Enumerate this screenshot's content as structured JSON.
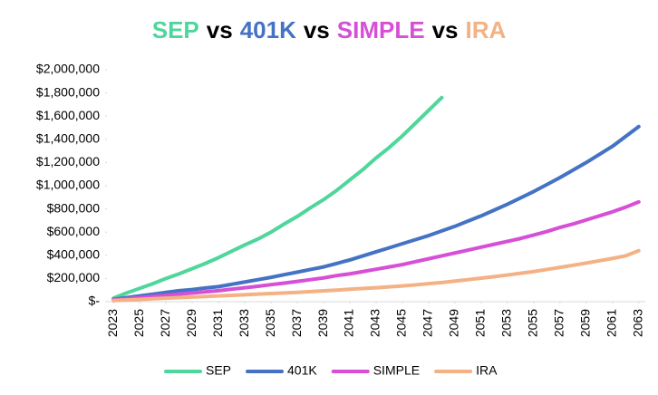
{
  "chart_data": {
    "type": "line",
    "title": [
      "SEP",
      "vs",
      "401K",
      "vs",
      "SIMPLE",
      "vs",
      "IRA"
    ],
    "x": [
      2023,
      2024,
      2025,
      2026,
      2027,
      2028,
      2029,
      2030,
      2031,
      2032,
      2033,
      2034,
      2035,
      2036,
      2037,
      2038,
      2039,
      2040,
      2041,
      2042,
      2043,
      2044,
      2045,
      2046,
      2047,
      2048,
      2049,
      2050,
      2051,
      2052,
      2053,
      2054,
      2055,
      2056,
      2057,
      2058,
      2059,
      2060,
      2061,
      2062,
      2063
    ],
    "xlim": [
      2022.5,
      2063.5
    ],
    "xticks": [
      2023,
      2025,
      2027,
      2029,
      2031,
      2033,
      2035,
      2037,
      2039,
      2041,
      2043,
      2045,
      2047,
      2049,
      2051,
      2053,
      2055,
      2057,
      2059,
      2061,
      2063
    ],
    "ylim": [
      0,
      2000000
    ],
    "yticks": [
      {
        "value": 0,
        "label": "$-"
      },
      {
        "value": 200000,
        "label": "$200,000"
      },
      {
        "value": 400000,
        "label": "$400,000"
      },
      {
        "value": 600000,
        "label": "$600,000"
      },
      {
        "value": 800000,
        "label": "$800,000"
      },
      {
        "value": 1000000,
        "label": "$1,000,000"
      },
      {
        "value": 1200000,
        "label": "$1,200,000"
      },
      {
        "value": 1400000,
        "label": "$1,400,000"
      },
      {
        "value": 1600000,
        "label": "$1,600,000"
      },
      {
        "value": 1800000,
        "label": "$1,800,000"
      },
      {
        "value": 2000000,
        "label": "$2,000,000"
      }
    ],
    "legend": "bottom",
    "series": [
      {
        "name": "SEP",
        "color": "#4fd69c",
        "values": [
          30000,
          75000,
          115000,
          155000,
          200000,
          240000,
          285000,
          330000,
          380000,
          435000,
          490000,
          540000,
          600000,
          670000,
          735000,
          810000,
          880000,
          960000,
          1050000,
          1140000,
          1240000,
          1330000,
          1430000,
          1540000,
          1650000,
          1760000,
          null,
          null,
          null,
          null,
          null,
          null,
          null,
          null,
          null,
          null,
          null,
          null,
          null,
          null,
          null
        ]
      },
      {
        "name": "401K",
        "color": "#4472c4",
        "values": [
          20000,
          35000,
          50000,
          65000,
          80000,
          95000,
          105000,
          118000,
          130000,
          150000,
          170000,
          190000,
          210000,
          233000,
          255000,
          278000,
          300000,
          330000,
          360000,
          395000,
          430000,
          465000,
          500000,
          535000,
          570000,
          610000,
          650000,
          695000,
          740000,
          790000,
          840000,
          895000,
          950000,
          1010000,
          1070000,
          1135000,
          1200000,
          1270000,
          1340000,
          1425000,
          1510000
        ]
      },
      {
        "name": "SIMPLE",
        "color": "#d64fd6",
        "values": [
          15000,
          25000,
          35000,
          45000,
          55000,
          65000,
          75000,
          85000,
          95000,
          108000,
          120000,
          133000,
          147000,
          160000,
          175000,
          190000,
          205000,
          225000,
          240000,
          260000,
          280000,
          300000,
          320000,
          345000,
          370000,
          395000,
          420000,
          445000,
          470000,
          495000,
          520000,
          545000,
          575000,
          605000,
          640000,
          670000,
          705000,
          740000,
          775000,
          815000,
          860000
        ]
      },
      {
        "name": "IRA",
        "color": "#f4b183",
        "values": [
          10000,
          15000,
          20000,
          25000,
          30000,
          35000,
          40000,
          45000,
          50000,
          55000,
          60000,
          65000,
          70000,
          75000,
          80000,
          87000,
          94000,
          100000,
          107000,
          114000,
          120000,
          128000,
          136000,
          145000,
          155000,
          165000,
          178000,
          190000,
          203000,
          216000,
          230000,
          245000,
          260000,
          278000,
          296000,
          314000,
          333000,
          353000,
          373000,
          395000,
          440000
        ]
      }
    ]
  }
}
